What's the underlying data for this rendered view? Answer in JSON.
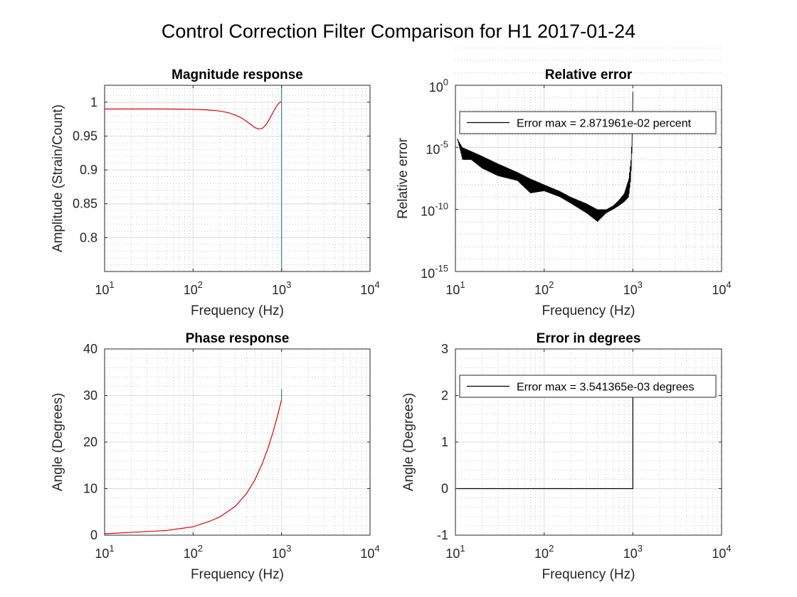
{
  "figure": {
    "title": "Control Correction Filter Comparison for H1 2017-01-24"
  },
  "colors": {
    "trace_red": "#e00000",
    "trace_teal": "#1f8f9a",
    "trace_black": "#000000",
    "axis": "#262626",
    "grid": "#dcdcdc"
  },
  "chart_data": [
    {
      "id": "magnitude",
      "type": "line",
      "title": "Magnitude response",
      "xlabel": "Frequency (Hz)",
      "ylabel": "Amplitude (Strain/Count)",
      "xscale": "log",
      "xlim": [
        10,
        10000
      ],
      "ylim": [
        0.75,
        1.025
      ],
      "xticks": [
        10,
        100,
        1000,
        10000
      ],
      "yticks": [
        0.8,
        0.85,
        0.9,
        0.95,
        1
      ],
      "ytick_labels": [
        "0.8",
        "0.85",
        "0.9",
        "0.95",
        "1"
      ],
      "grid": true,
      "series": [
        {
          "color": "red",
          "x": [
            10,
            20,
            50,
            100,
            150,
            200,
            250,
            300,
            350,
            400,
            450,
            500,
            550,
            600,
            650,
            700,
            750,
            800,
            850,
            900,
            950,
            1000
          ],
          "y": [
            0.99,
            0.99,
            0.99,
            0.9895,
            0.9885,
            0.987,
            0.9845,
            0.981,
            0.977,
            0.972,
            0.967,
            0.9625,
            0.9605,
            0.961,
            0.965,
            0.971,
            0.978,
            0.985,
            0.991,
            0.996,
            0.9995,
            1.001
          ]
        },
        {
          "color": "teal",
          "x": [
            1000,
            1000
          ],
          "y": [
            0.75,
            1.025
          ]
        }
      ]
    },
    {
      "id": "relative-error",
      "type": "line",
      "title": "Relative error",
      "xlabel": "Frequency (Hz)",
      "ylabel": "Relative error",
      "xscale": "log",
      "yscale": "log",
      "xlim": [
        10,
        10000
      ],
      "ylim": [
        1e-15,
        1
      ],
      "xticks": [
        10,
        100,
        1000,
        10000
      ],
      "yticks": [
        1e-15,
        1e-10,
        1e-05,
        1
      ],
      "grid": true,
      "legend": {
        "location": "upper-left",
        "entries": [
          "Error max = 2.871961e-02 percent"
        ]
      },
      "envelope": {
        "x": [
          10.5,
          12,
          15,
          20,
          30,
          50,
          70,
          100,
          150,
          200,
          300,
          400,
          500,
          600,
          700,
          800,
          900,
          950,
          980,
          1000
        ],
        "upper": [
          5e-05,
          1e-05,
          5e-06,
          2e-06,
          5e-07,
          1e-07,
          3e-08,
          1e-08,
          3e-09,
          1e-09,
          3e-10,
          1e-10,
          1e-10,
          2e-10,
          6e-10,
          2e-09,
          3e-08,
          1e-06,
          0.0001,
          0.3
        ],
        "lower": [
          5e-05,
          1e-06,
          1e-06,
          2e-07,
          5e-08,
          2e-08,
          2e-09,
          3e-09,
          1e-09,
          3e-10,
          5e-11,
          1e-11,
          5e-11,
          1e-10,
          2e-10,
          4e-10,
          1e-09,
          3e-08,
          1e-05,
          0.3
        ]
      }
    },
    {
      "id": "phase",
      "type": "line",
      "title": "Phase response",
      "xlabel": "Frequency (Hz)",
      "ylabel": "Angle (Degrees)",
      "xscale": "log",
      "xlim": [
        10,
        10000
      ],
      "ylim": [
        0,
        40
      ],
      "xticks": [
        10,
        100,
        1000,
        10000
      ],
      "yticks": [
        0,
        10,
        20,
        30,
        40
      ],
      "ytick_labels": [
        "0",
        "10",
        "20",
        "30",
        "40"
      ],
      "grid": true,
      "series": [
        {
          "color": "red",
          "x": [
            10,
            20,
            50,
            100,
            150,
            200,
            300,
            400,
            500,
            600,
            700,
            800,
            900,
            1000
          ],
          "y": [
            0.3,
            0.6,
            1.0,
            1.8,
            2.9,
            3.9,
            6.2,
            8.9,
            11.9,
            15.2,
            18.6,
            22.1,
            25.6,
            29.1
          ]
        },
        {
          "color": "teal",
          "x": [
            1000,
            1000
          ],
          "y": [
            29.1,
            31.4
          ]
        }
      ]
    },
    {
      "id": "error-degrees",
      "type": "line",
      "title": "Error in degrees",
      "xlabel": "Frequency (Hz)",
      "ylabel": "Angle (Degrees)",
      "xscale": "log",
      "xlim": [
        10,
        10000
      ],
      "ylim": [
        -1,
        3
      ],
      "xticks": [
        10,
        100,
        1000,
        10000
      ],
      "yticks": [
        -1,
        0,
        1,
        2,
        3
      ],
      "ytick_labels": [
        "-1",
        "0",
        "1",
        "2",
        "3"
      ],
      "grid": true,
      "legend": {
        "location": "upper-left",
        "entries": [
          "Error max = 3.541365e-03 degrees"
        ]
      },
      "series": [
        {
          "color": "black",
          "x": [
            10,
            1000,
            1000,
            1001
          ],
          "y": [
            0,
            0,
            2.15,
            2.15
          ]
        }
      ]
    }
  ]
}
